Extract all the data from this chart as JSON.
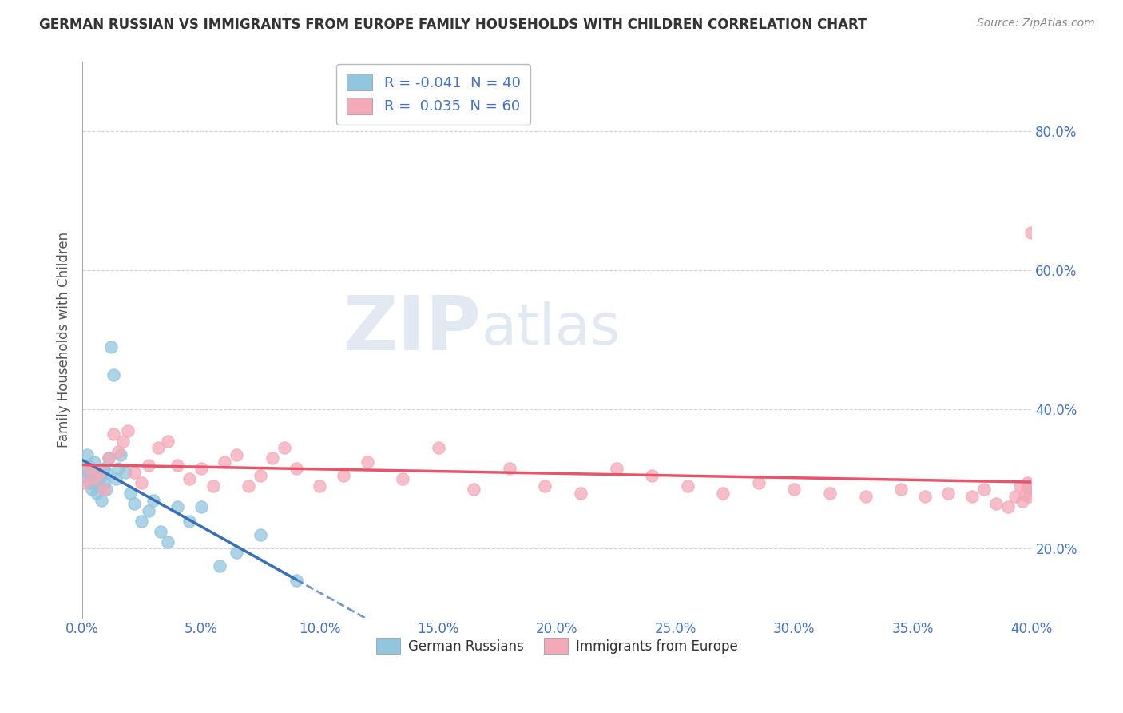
{
  "title": "GERMAN RUSSIAN VS IMMIGRANTS FROM EUROPE FAMILY HOUSEHOLDS WITH CHILDREN CORRELATION CHART",
  "source": "Source: ZipAtlas.com",
  "ylabel": "Family Households with Children",
  "xlim": [
    0.0,
    0.4
  ],
  "ylim": [
    0.1,
    0.9
  ],
  "yticks": [
    0.2,
    0.4,
    0.6,
    0.8
  ],
  "xticks": [
    0.0,
    0.05,
    0.1,
    0.15,
    0.2,
    0.25,
    0.3,
    0.35,
    0.4
  ],
  "blue_R": -0.041,
  "blue_N": 40,
  "pink_R": 0.035,
  "pink_N": 60,
  "blue_color": "#92c5de",
  "pink_color": "#f4a9b8",
  "blue_line_color": "#3a6eb5",
  "pink_line_color": "#e8546a",
  "blue_scatter_x": [
    0.001,
    0.002,
    0.002,
    0.003,
    0.003,
    0.004,
    0.004,
    0.005,
    0.005,
    0.006,
    0.006,
    0.007,
    0.007,
    0.008,
    0.008,
    0.009,
    0.009,
    0.01,
    0.01,
    0.011,
    0.012,
    0.013,
    0.014,
    0.015,
    0.016,
    0.018,
    0.02,
    0.022,
    0.025,
    0.028,
    0.03,
    0.033,
    0.036,
    0.04,
    0.045,
    0.05,
    0.058,
    0.065,
    0.075,
    0.09
  ],
  "blue_scatter_y": [
    0.305,
    0.32,
    0.335,
    0.295,
    0.31,
    0.315,
    0.285,
    0.3,
    0.325,
    0.295,
    0.28,
    0.31,
    0.29,
    0.305,
    0.27,
    0.315,
    0.295,
    0.31,
    0.285,
    0.33,
    0.49,
    0.45,
    0.3,
    0.315,
    0.335,
    0.31,
    0.28,
    0.265,
    0.24,
    0.255,
    0.27,
    0.225,
    0.21,
    0.26,
    0.24,
    0.26,
    0.175,
    0.195,
    0.22,
    0.155
  ],
  "pink_scatter_x": [
    0.001,
    0.003,
    0.005,
    0.007,
    0.009,
    0.011,
    0.013,
    0.015,
    0.017,
    0.019,
    0.022,
    0.025,
    0.028,
    0.032,
    0.036,
    0.04,
    0.045,
    0.05,
    0.055,
    0.06,
    0.065,
    0.07,
    0.075,
    0.08,
    0.085,
    0.09,
    0.1,
    0.11,
    0.12,
    0.135,
    0.15,
    0.165,
    0.18,
    0.195,
    0.21,
    0.225,
    0.24,
    0.255,
    0.27,
    0.285,
    0.3,
    0.315,
    0.33,
    0.345,
    0.355,
    0.365,
    0.375,
    0.38,
    0.385,
    0.39,
    0.393,
    0.395,
    0.396,
    0.397,
    0.398,
    0.398,
    0.399,
    0.399,
    0.4,
    0.4
  ],
  "pink_scatter_y": [
    0.295,
    0.315,
    0.3,
    0.31,
    0.285,
    0.33,
    0.365,
    0.34,
    0.355,
    0.37,
    0.31,
    0.295,
    0.32,
    0.345,
    0.355,
    0.32,
    0.3,
    0.315,
    0.29,
    0.325,
    0.335,
    0.29,
    0.305,
    0.33,
    0.345,
    0.315,
    0.29,
    0.305,
    0.325,
    0.3,
    0.345,
    0.285,
    0.315,
    0.29,
    0.28,
    0.315,
    0.305,
    0.29,
    0.28,
    0.295,
    0.285,
    0.28,
    0.275,
    0.285,
    0.275,
    0.28,
    0.275,
    0.285,
    0.265,
    0.26,
    0.275,
    0.29,
    0.268,
    0.278,
    0.288,
    0.295,
    0.275,
    0.29,
    0.655,
    0.288
  ],
  "watermark_zip": "ZIP",
  "watermark_atlas": "atlas",
  "background_color": "#ffffff",
  "grid_color": "#c8c8c8",
  "title_color": "#333333",
  "axis_tick_color": "#4472c4",
  "legend_R_color": "#4472c4",
  "legend_text_color": "#333333"
}
